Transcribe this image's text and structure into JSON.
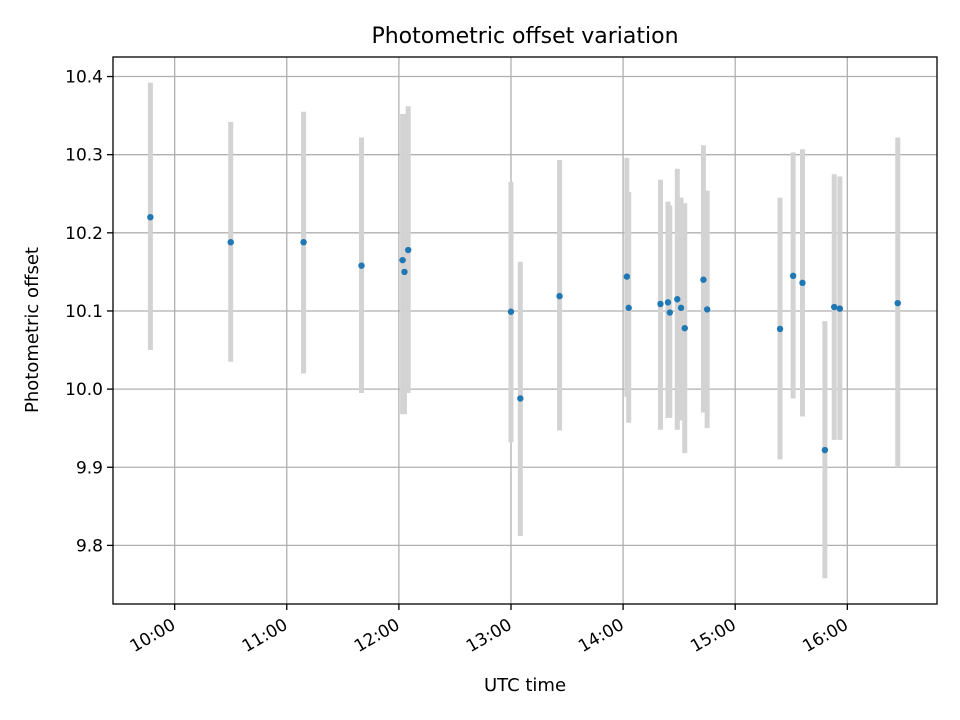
{
  "chart_data": {
    "type": "scatter",
    "title": "Photometric offset variation",
    "xlabel": "UTC time",
    "ylabel": "Photometric offset",
    "xlim": [
      "09:27",
      "16:48"
    ],
    "ylim": [
      9.725,
      10.425
    ],
    "x_ticks": [
      "10:00",
      "11:00",
      "12:00",
      "13:00",
      "14:00",
      "15:00",
      "16:00"
    ],
    "y_ticks": [
      9.8,
      9.9,
      10.0,
      10.1,
      10.2,
      10.3,
      10.4
    ],
    "grid": true,
    "error_bar_color": "#d3d3d3",
    "point_color": "#1f77b4",
    "points": [
      {
        "x": "09:47",
        "y": 10.22,
        "yerr_low": 10.05,
        "yerr_high": 10.392
      },
      {
        "x": "10:30",
        "y": 10.188,
        "yerr_low": 10.035,
        "yerr_high": 10.342
      },
      {
        "x": "11:09",
        "y": 10.188,
        "yerr_low": 10.02,
        "yerr_high": 10.355
      },
      {
        "x": "11:40",
        "y": 10.158,
        "yerr_low": 9.995,
        "yerr_high": 10.322
      },
      {
        "x": "12:02",
        "y": 10.165,
        "yerr_low": 9.968,
        "yerr_high": 10.352
      },
      {
        "x": "12:03",
        "y": 10.15,
        "yerr_low": 9.968,
        "yerr_high": 10.352
      },
      {
        "x": "12:05",
        "y": 10.178,
        "yerr_low": 9.995,
        "yerr_high": 10.362
      },
      {
        "x": "13:00",
        "y": 10.099,
        "yerr_low": 9.932,
        "yerr_high": 10.265
      },
      {
        "x": "13:05",
        "y": 9.988,
        "yerr_low": 9.812,
        "yerr_high": 10.163
      },
      {
        "x": "13:26",
        "y": 10.119,
        "yerr_low": 9.947,
        "yerr_high": 10.293
      },
      {
        "x": "14:02",
        "y": 10.144,
        "yerr_low": 9.99,
        "yerr_high": 10.296
      },
      {
        "x": "14:03",
        "y": 10.104,
        "yerr_low": 9.957,
        "yerr_high": 10.252
      },
      {
        "x": "14:20",
        "y": 10.109,
        "yerr_low": 9.948,
        "yerr_high": 10.268
      },
      {
        "x": "14:24",
        "y": 10.111,
        "yerr_low": 9.963,
        "yerr_high": 10.24
      },
      {
        "x": "14:25",
        "y": 10.098,
        "yerr_low": 9.963,
        "yerr_high": 10.235
      },
      {
        "x": "14:29",
        "y": 10.115,
        "yerr_low": 9.948,
        "yerr_high": 10.282
      },
      {
        "x": "14:31",
        "y": 10.104,
        "yerr_low": 9.96,
        "yerr_high": 10.245
      },
      {
        "x": "14:33",
        "y": 10.078,
        "yerr_low": 9.918,
        "yerr_high": 10.238
      },
      {
        "x": "14:43",
        "y": 10.14,
        "yerr_low": 9.97,
        "yerr_high": 10.312
      },
      {
        "x": "14:45",
        "y": 10.102,
        "yerr_low": 9.95,
        "yerr_high": 10.254
      },
      {
        "x": "15:24",
        "y": 10.077,
        "yerr_low": 9.91,
        "yerr_high": 10.245
      },
      {
        "x": "15:31",
        "y": 10.145,
        "yerr_low": 9.988,
        "yerr_high": 10.303
      },
      {
        "x": "15:36",
        "y": 10.136,
        "yerr_low": 9.965,
        "yerr_high": 10.307
      },
      {
        "x": "15:48",
        "y": 9.922,
        "yerr_low": 9.758,
        "yerr_high": 10.087
      },
      {
        "x": "15:53",
        "y": 10.105,
        "yerr_low": 9.935,
        "yerr_high": 10.275
      },
      {
        "x": "15:56",
        "y": 10.103,
        "yerr_low": 9.935,
        "yerr_high": 10.272
      },
      {
        "x": "16:27",
        "y": 10.11,
        "yerr_low": 9.9,
        "yerr_high": 10.322
      }
    ]
  }
}
